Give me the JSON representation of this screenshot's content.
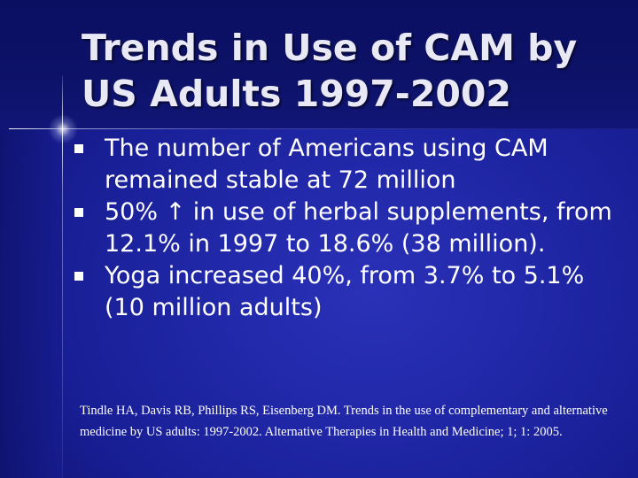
{
  "slide": {
    "title": "Trends in Use of CAM by US Adults 1997-2002",
    "bullets": [
      "The number of Americans using CAM remained stable at 72 million",
      "50% ↑ in use of herbal supplements, from 12.1% in 1997 to 18.6% (38 million).",
      "Yoga increased 40%, from 3.7% to 5.1% (10 million adults)"
    ],
    "citation": "Tindle HA, Davis RB, Phillips RS, Eisenberg DM. Trends in the use of complementary and alternative medicine by US adults: 1997-2002. Alternative Therapies in Health and Medicine; 1; 1: 2005."
  },
  "colors": {
    "background": "#151a8c",
    "title_text": "#e9e9f6",
    "body_text": "#ffffff"
  },
  "icons": {
    "bullet": "square-bullet-icon"
  }
}
